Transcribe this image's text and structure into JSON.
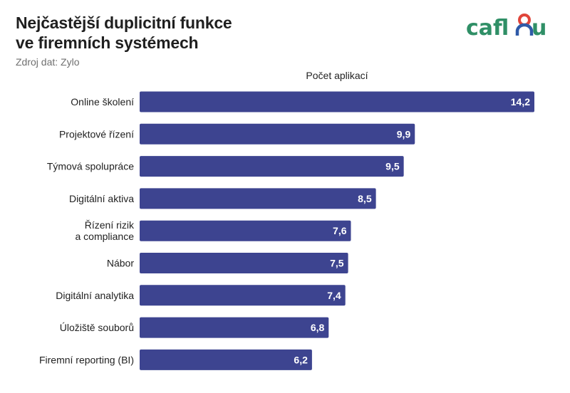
{
  "header": {
    "title_line1": "Nejčastější duplicitní funkce",
    "title_line2": "ve firemních systémech",
    "source": "Zdroj dat: Zylo"
  },
  "logo": {
    "text": "caflou",
    "color_green": "#2f8f66",
    "color_red": "#e0453a",
    "color_blue": "#2f5aa8"
  },
  "chart_data": {
    "type": "bar",
    "orientation": "horizontal",
    "xlabel": "Počet aplikací",
    "categories": [
      "Online školení",
      "Projektové řízení",
      "Týmová spolupráce",
      "Digitální aktiva",
      "Řízení rizik\na compliance",
      "Nábor",
      "Digitální analytika",
      "Úložiště souborů",
      "Firemní reporting (BI)"
    ],
    "values": [
      14.2,
      9.9,
      9.5,
      8.5,
      7.6,
      7.5,
      7.4,
      6.8,
      6.2
    ],
    "value_labels": [
      "14,2",
      "9,9",
      "9,5",
      "8,5",
      "7,6",
      "7,5",
      "7,4",
      "6,8",
      "6,2"
    ],
    "bar_color": "#3d4490",
    "label_color": "#ffffff",
    "xlim": [
      0,
      14.2
    ],
    "grid": false,
    "legend": "none"
  }
}
